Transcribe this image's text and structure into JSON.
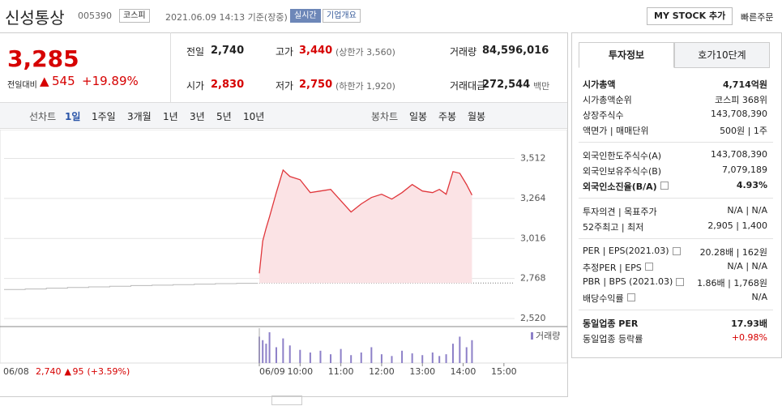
{
  "header": {
    "name": "신성통상",
    "code": "005390",
    "market": "코스피",
    "timestamp": "2021.06.09 14:13 기준(장중)",
    "realtime": "실시간",
    "overview": "기업개요",
    "my_stock": "MY STOCK 추가",
    "quick_order": "빠른주문"
  },
  "price": {
    "current": "3,285",
    "change_label": "전일대비",
    "change": "545",
    "change_pct": "+19.89%"
  },
  "summary": [
    {
      "label": "전일",
      "value": "2,740",
      "color": "#222"
    },
    {
      "label": "고가",
      "value": "3,440",
      "note": "(상한가 3,560)",
      "color": "#d60000"
    },
    {
      "label": "거래량",
      "value": "84,596,016",
      "color": "#222"
    },
    {
      "label": "시가",
      "value": "2,830",
      "color": "#d60000"
    },
    {
      "label": "저가",
      "value": "2,750",
      "note": "(하한가 1,920)",
      "color": "#d60000"
    },
    {
      "label": "거래대금",
      "value": "272,544",
      "note": "백만",
      "color": "#222"
    }
  ],
  "chart_tabs": {
    "line_label": "선차트",
    "line_periods": [
      "1일",
      "1주일",
      "3개월",
      "1년",
      "3년",
      "5년",
      "10년"
    ],
    "candle_label": "봉차트",
    "candle_periods": [
      "일봉",
      "주봉",
      "월봉"
    ]
  },
  "chart": {
    "type": "line",
    "color": "#e0363b",
    "fill": "#fbe3e5",
    "volume_color": "#8d80c8",
    "prev_color": "#b8b8b8",
    "x": [
      0,
      5,
      10,
      15,
      25,
      35,
      45,
      60,
      75,
      90,
      105,
      120,
      135,
      150,
      165,
      180,
      195,
      210,
      225,
      240,
      255,
      265,
      275,
      285,
      295,
      305,
      313
    ],
    "values": [
      2800,
      3000,
      3080,
      3150,
      3300,
      3440,
      3400,
      3380,
      3300,
      3310,
      3320,
      3250,
      3180,
      3230,
      3270,
      3290,
      3260,
      3300,
      3350,
      3310,
      3300,
      3320,
      3290,
      3430,
      3420,
      3350,
      3285
    ],
    "volume": [
      30,
      26,
      22,
      35,
      18,
      28,
      20,
      15,
      12,
      14,
      10,
      16,
      9,
      12,
      18,
      10,
      8,
      14,
      11,
      9,
      12,
      8,
      10,
      22,
      30,
      18,
      26
    ],
    "prev_values": [
      2700,
      2703,
      2708,
      2712,
      2716,
      2720,
      2724,
      2727,
      2730,
      2733,
      2736,
      2738,
      2740
    ],
    "base": 2740,
    "xlim": [
      0,
      390
    ],
    "ylim": [
      2470,
      3670
    ],
    "yticks": [
      {
        "value": 3512,
        "label": "3,512"
      },
      {
        "value": 3264,
        "label": "3,264"
      },
      {
        "value": 3016,
        "label": "3,016"
      },
      {
        "value": 2768,
        "label": "2,768"
      },
      {
        "value": 2520,
        "label": "2,520"
      }
    ],
    "xticks": [
      {
        "value": 0,
        "label": "06/09"
      },
      {
        "value": 60,
        "label": "10:00"
      },
      {
        "value": 120,
        "label": "11:00"
      },
      {
        "value": 180,
        "label": "12:00"
      },
      {
        "value": 240,
        "label": "13:00"
      },
      {
        "value": 300,
        "label": "14:00"
      },
      {
        "value": 360,
        "label": "15:00"
      }
    ],
    "grid": true,
    "legend": "거래량",
    "prev_label": "06/08",
    "prev_close": "2,740",
    "prev_change": "95",
    "prev_change_pct": "(+3.59%)"
  },
  "side": {
    "tabs": [
      "투자정보",
      "호가10단계"
    ],
    "groups": [
      [
        {
          "label": "시가총액",
          "value": "4,714억원",
          "strong": true
        },
        {
          "label": "시가총액순위",
          "value": "코스피 368위"
        },
        {
          "label": "상장주식수",
          "value": "143,708,390"
        },
        {
          "label": "액면가 | 매매단위",
          "value": "500원 | 1주"
        }
      ],
      [
        {
          "label": "외국인한도주식수(A)",
          "value": "143,708,390"
        },
        {
          "label": "외국인보유주식수(B)",
          "value": "7,079,189"
        },
        {
          "label": "외국인소진율(B/A)",
          "value": "4.93%",
          "strong": true,
          "help": true
        }
      ],
      [
        {
          "label": "투자의견 | 목표주가",
          "value": "N/A | N/A"
        },
        {
          "label": "52주최고 | 최저",
          "value": "2,905 | 1,400"
        }
      ],
      [
        {
          "label": "PER | EPS(2021.03)",
          "value": "20.28배 | 162원",
          "help": true
        },
        {
          "label": "추정PER | EPS",
          "value": "N/A | N/A",
          "help": true
        },
        {
          "label": "PBR | BPS (2021.03)",
          "value": "1.86배 | 1,768원",
          "help": true
        },
        {
          "label": "배당수익률",
          "value": "N/A",
          "help": true
        }
      ],
      [
        {
          "label": "동일업종 PER",
          "value": "17.93배",
          "strong": true
        },
        {
          "label": "동일업종 등락률",
          "value": "+0.98%",
          "color": "#d60000"
        }
      ]
    ]
  }
}
